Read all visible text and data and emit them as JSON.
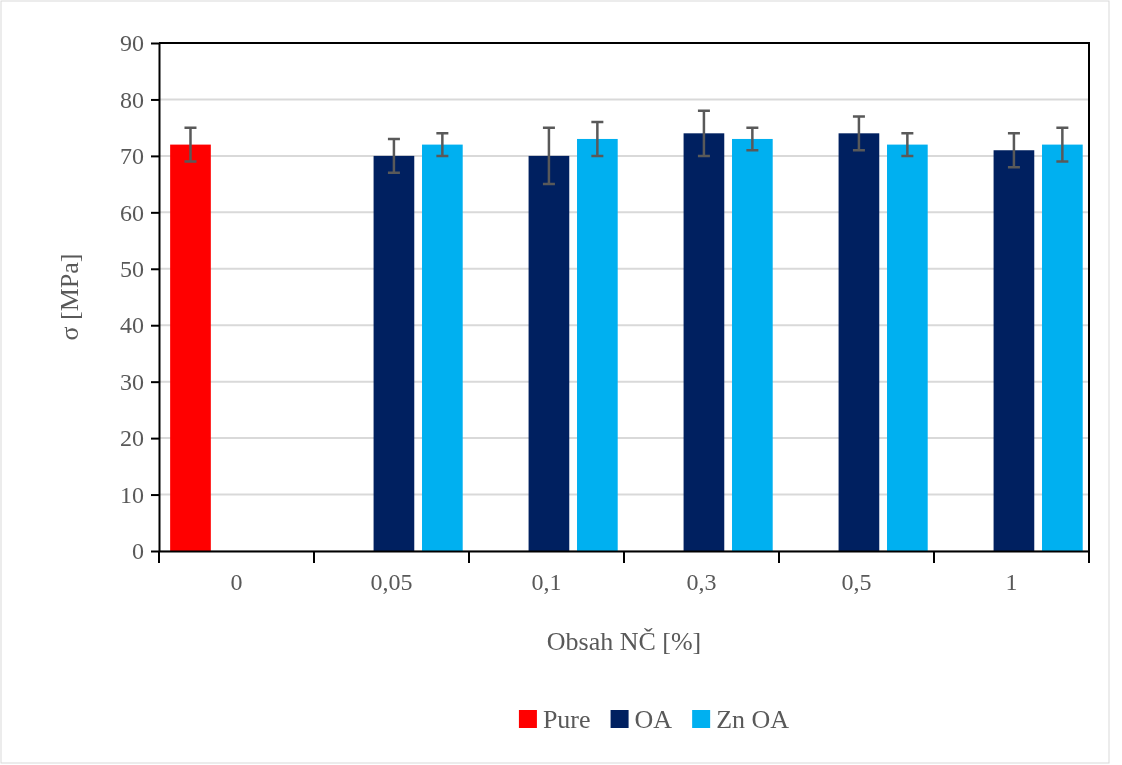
{
  "chart_data": {
    "type": "bar",
    "xlabel": "Obsah NČ [%]",
    "ylabel": "σ [MPa]",
    "categories": [
      "0",
      "0,05",
      "0,1",
      "0,3",
      "0,5",
      "1"
    ],
    "series": [
      {
        "name": "Pure",
        "color": "#ff0000",
        "values": [
          72,
          null,
          null,
          null,
          null,
          null
        ],
        "errors": [
          [
            69,
            75
          ],
          null,
          null,
          null,
          null,
          null
        ]
      },
      {
        "name": "OA",
        "color": "#002060",
        "values": [
          null,
          70,
          70,
          74,
          74,
          71
        ],
        "errors": [
          null,
          3,
          5,
          4,
          [
            71,
            77
          ],
          3
        ]
      },
      {
        "name": "Zn OA",
        "color": "#00b0f0",
        "values": [
          null,
          72,
          73,
          73,
          72,
          72
        ],
        "errors": [
          null,
          [
            70,
            74
          ],
          [
            70,
            76
          ],
          2,
          2,
          3
        ]
      }
    ],
    "ylim": [
      0,
      90
    ],
    "yticks": [
      0,
      10,
      20,
      30,
      40,
      50,
      60,
      70,
      80,
      90
    ],
    "grid": "y",
    "legend": "bottom"
  }
}
